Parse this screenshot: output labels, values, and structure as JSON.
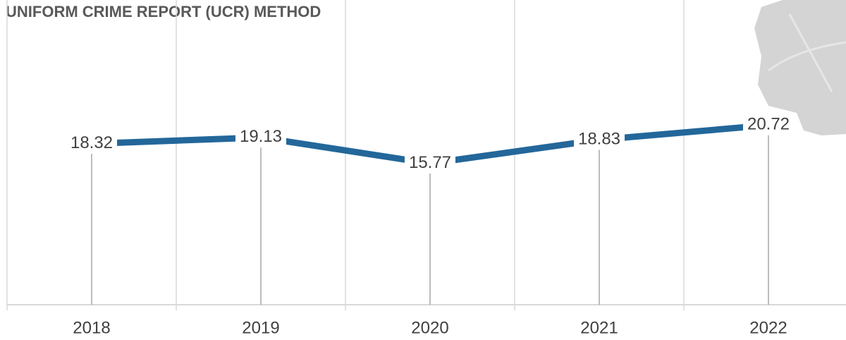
{
  "chart_data": {
    "type": "line",
    "title": "UNIFORM CRIME REPORT (UCR) METHOD",
    "categories": [
      "2018",
      "2019",
      "2020",
      "2021",
      "2022"
    ],
    "series": [
      {
        "name": "UCR",
        "color": "#23679a",
        "values": [
          18.32,
          19.13,
          15.77,
          18.83,
          20.72
        ]
      }
    ],
    "ylim": [
      -2.5,
      36.9
    ],
    "grid": true
  }
}
